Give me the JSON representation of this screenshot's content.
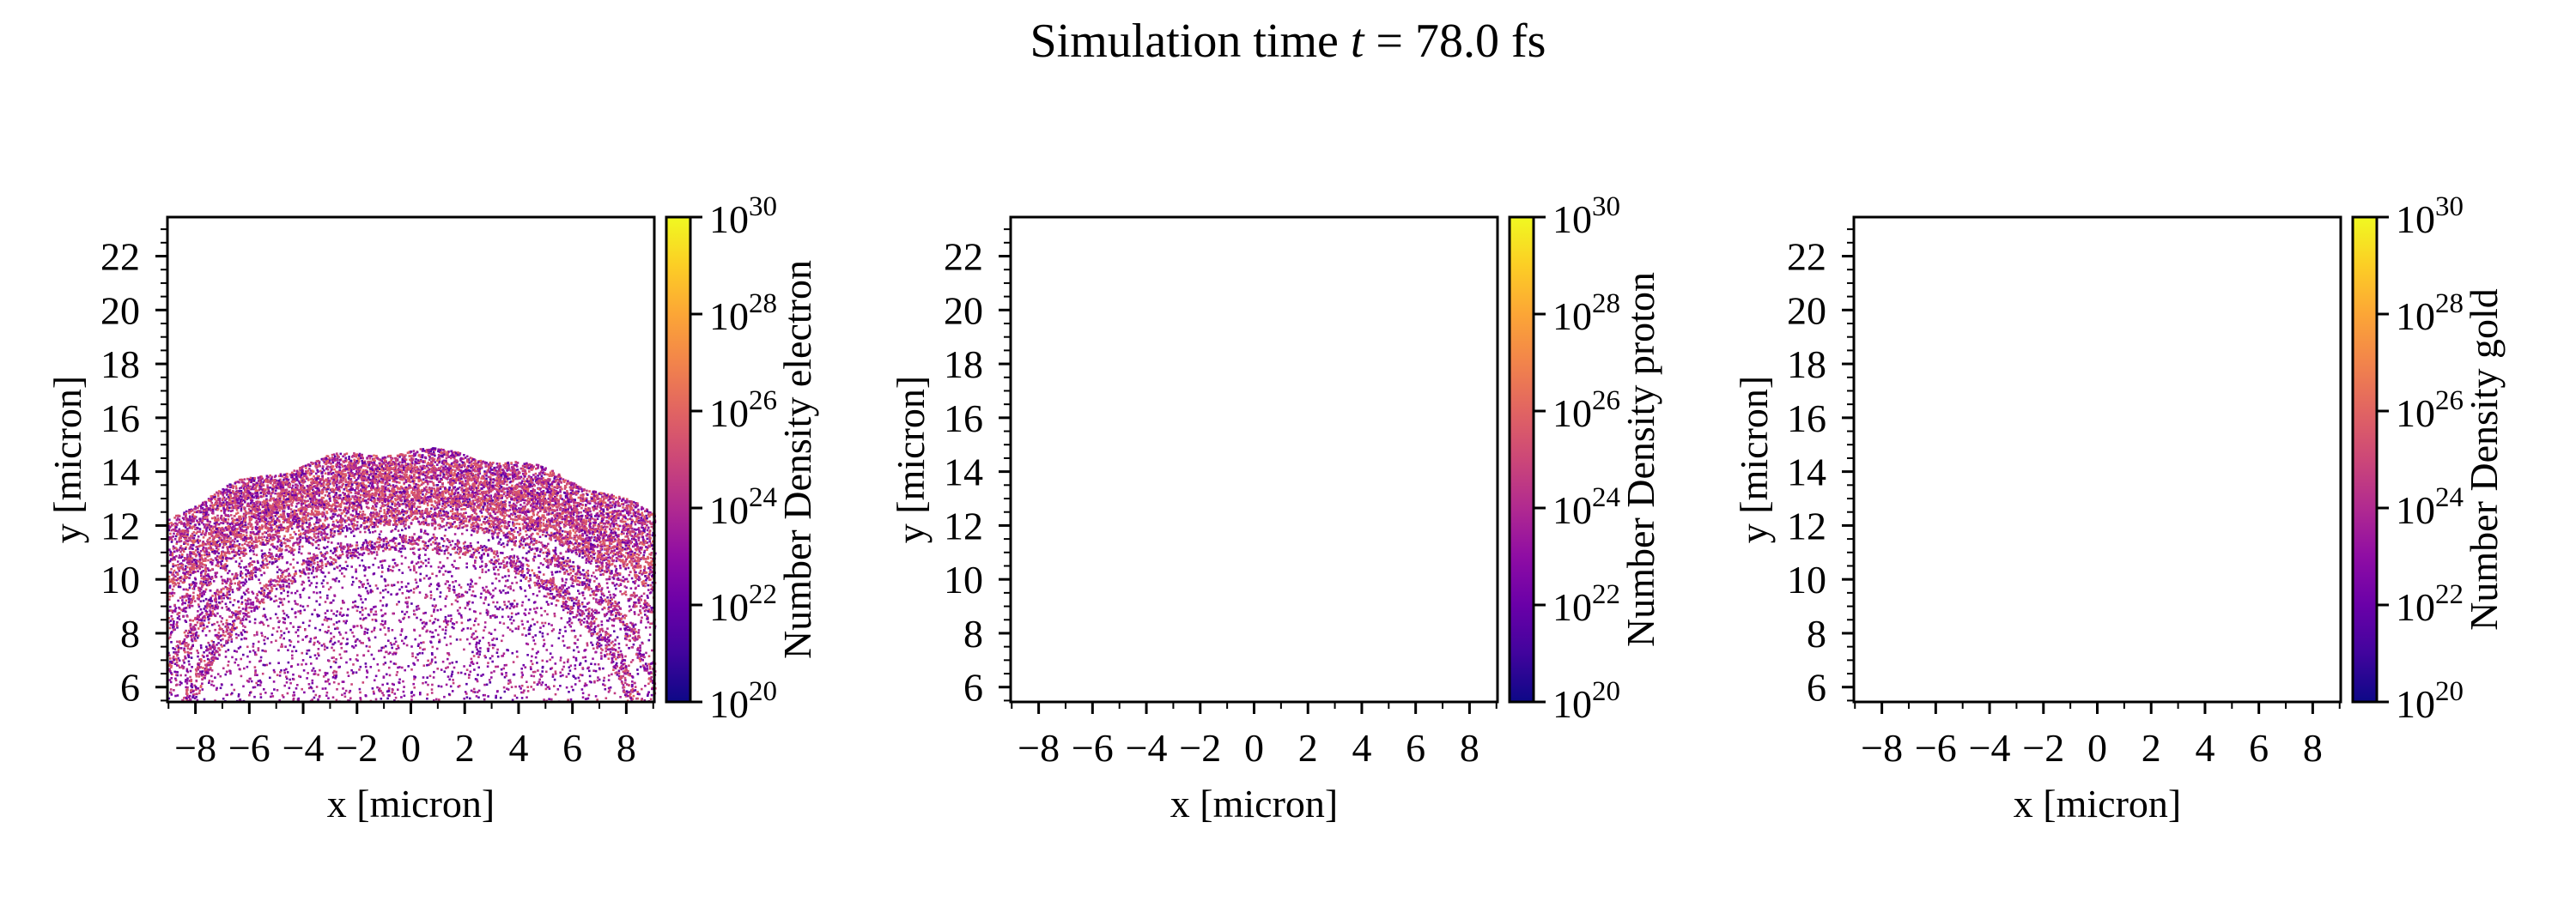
{
  "title": "Simulation time t = 78.0 fs",
  "title_parts": {
    "prefix": "Simulation time ",
    "var": "t",
    "suffix": " = 78.0 fs"
  },
  "chart_data": [
    {
      "type": "heatmap",
      "species": "electron",
      "xlabel": "x [micron]",
      "ylabel": "y [micron]",
      "colorbar_label": "Number Density electron",
      "xlim": [
        -9.04,
        9.04
      ],
      "ylim": [
        5.45,
        23.45
      ],
      "xticks": [
        -8,
        -6,
        -4,
        -2,
        0,
        2,
        4,
        6,
        8
      ],
      "xtick_labels": [
        "−8",
        "−6",
        "−4",
        "−2",
        "0",
        "2",
        "4",
        "6",
        "8"
      ],
      "yticks": [
        6,
        8,
        10,
        12,
        14,
        16,
        18,
        20,
        22
      ],
      "ytick_labels": [
        "6",
        "8",
        "10",
        "12",
        "14",
        "16",
        "18",
        "20",
        "22"
      ],
      "colorbar": {
        "scale": "log",
        "cmap": "plasma",
        "min_exp": 20,
        "max_exp": 30,
        "tick_exps": [
          20,
          22,
          24,
          26,
          28,
          30
        ],
        "tick_base": "10",
        "tick_sup": [
          "20",
          "22",
          "24",
          "26",
          "28",
          "30"
        ]
      },
      "has_data": true,
      "data_extent": {
        "top_y_at_center": 14.8,
        "top_y_at_edges": 12.4,
        "dense_band_y": [
          12,
          14.8
        ],
        "value_range_exp": [
          21,
          26
        ]
      }
    },
    {
      "type": "heatmap",
      "species": "proton",
      "xlabel": "x [micron]",
      "ylabel": "y [micron]",
      "colorbar_label": "Number Density proton",
      "xlim": [
        -9.04,
        9.04
      ],
      "ylim": [
        5.45,
        23.45
      ],
      "xticks": [
        -8,
        -6,
        -4,
        -2,
        0,
        2,
        4,
        6,
        8
      ],
      "xtick_labels": [
        "−8",
        "−6",
        "−4",
        "−2",
        "0",
        "2",
        "4",
        "6",
        "8"
      ],
      "yticks": [
        6,
        8,
        10,
        12,
        14,
        16,
        18,
        20,
        22
      ],
      "ytick_labels": [
        "6",
        "8",
        "10",
        "12",
        "14",
        "16",
        "18",
        "20",
        "22"
      ],
      "colorbar": {
        "scale": "log",
        "cmap": "plasma",
        "min_exp": 20,
        "max_exp": 30,
        "tick_exps": [
          20,
          22,
          24,
          26,
          28,
          30
        ],
        "tick_base": "10",
        "tick_sup": [
          "20",
          "22",
          "24",
          "26",
          "28",
          "30"
        ]
      },
      "has_data": false
    },
    {
      "type": "heatmap",
      "species": "gold",
      "xlabel": "x [micron]",
      "ylabel": "y [micron]",
      "colorbar_label": "Number Density gold",
      "xlim": [
        -9.04,
        9.04
      ],
      "ylim": [
        5.45,
        23.45
      ],
      "xticks": [
        -8,
        -6,
        -4,
        -2,
        0,
        2,
        4,
        6,
        8
      ],
      "xtick_labels": [
        "−8",
        "−6",
        "−4",
        "−2",
        "0",
        "2",
        "4",
        "6",
        "8"
      ],
      "yticks": [
        6,
        8,
        10,
        12,
        14,
        16,
        18,
        20,
        22
      ],
      "ytick_labels": [
        "6",
        "8",
        "10",
        "12",
        "14",
        "16",
        "18",
        "20",
        "22"
      ],
      "colorbar": {
        "scale": "log",
        "cmap": "plasma",
        "min_exp": 20,
        "max_exp": 30,
        "tick_exps": [
          20,
          22,
          24,
          26,
          28,
          30
        ],
        "tick_base": "10",
        "tick_sup": [
          "20",
          "22",
          "24",
          "26",
          "28",
          "30"
        ]
      },
      "has_data": false
    }
  ],
  "colors": {
    "plasma": [
      "#0d0887",
      "#41049d",
      "#6a00a8",
      "#8f0da4",
      "#b12a90",
      "#cc4778",
      "#e16462",
      "#f2844b",
      "#fca636",
      "#fcce25",
      "#f0f921"
    ],
    "axis": "#000000",
    "background": "#ffffff"
  }
}
